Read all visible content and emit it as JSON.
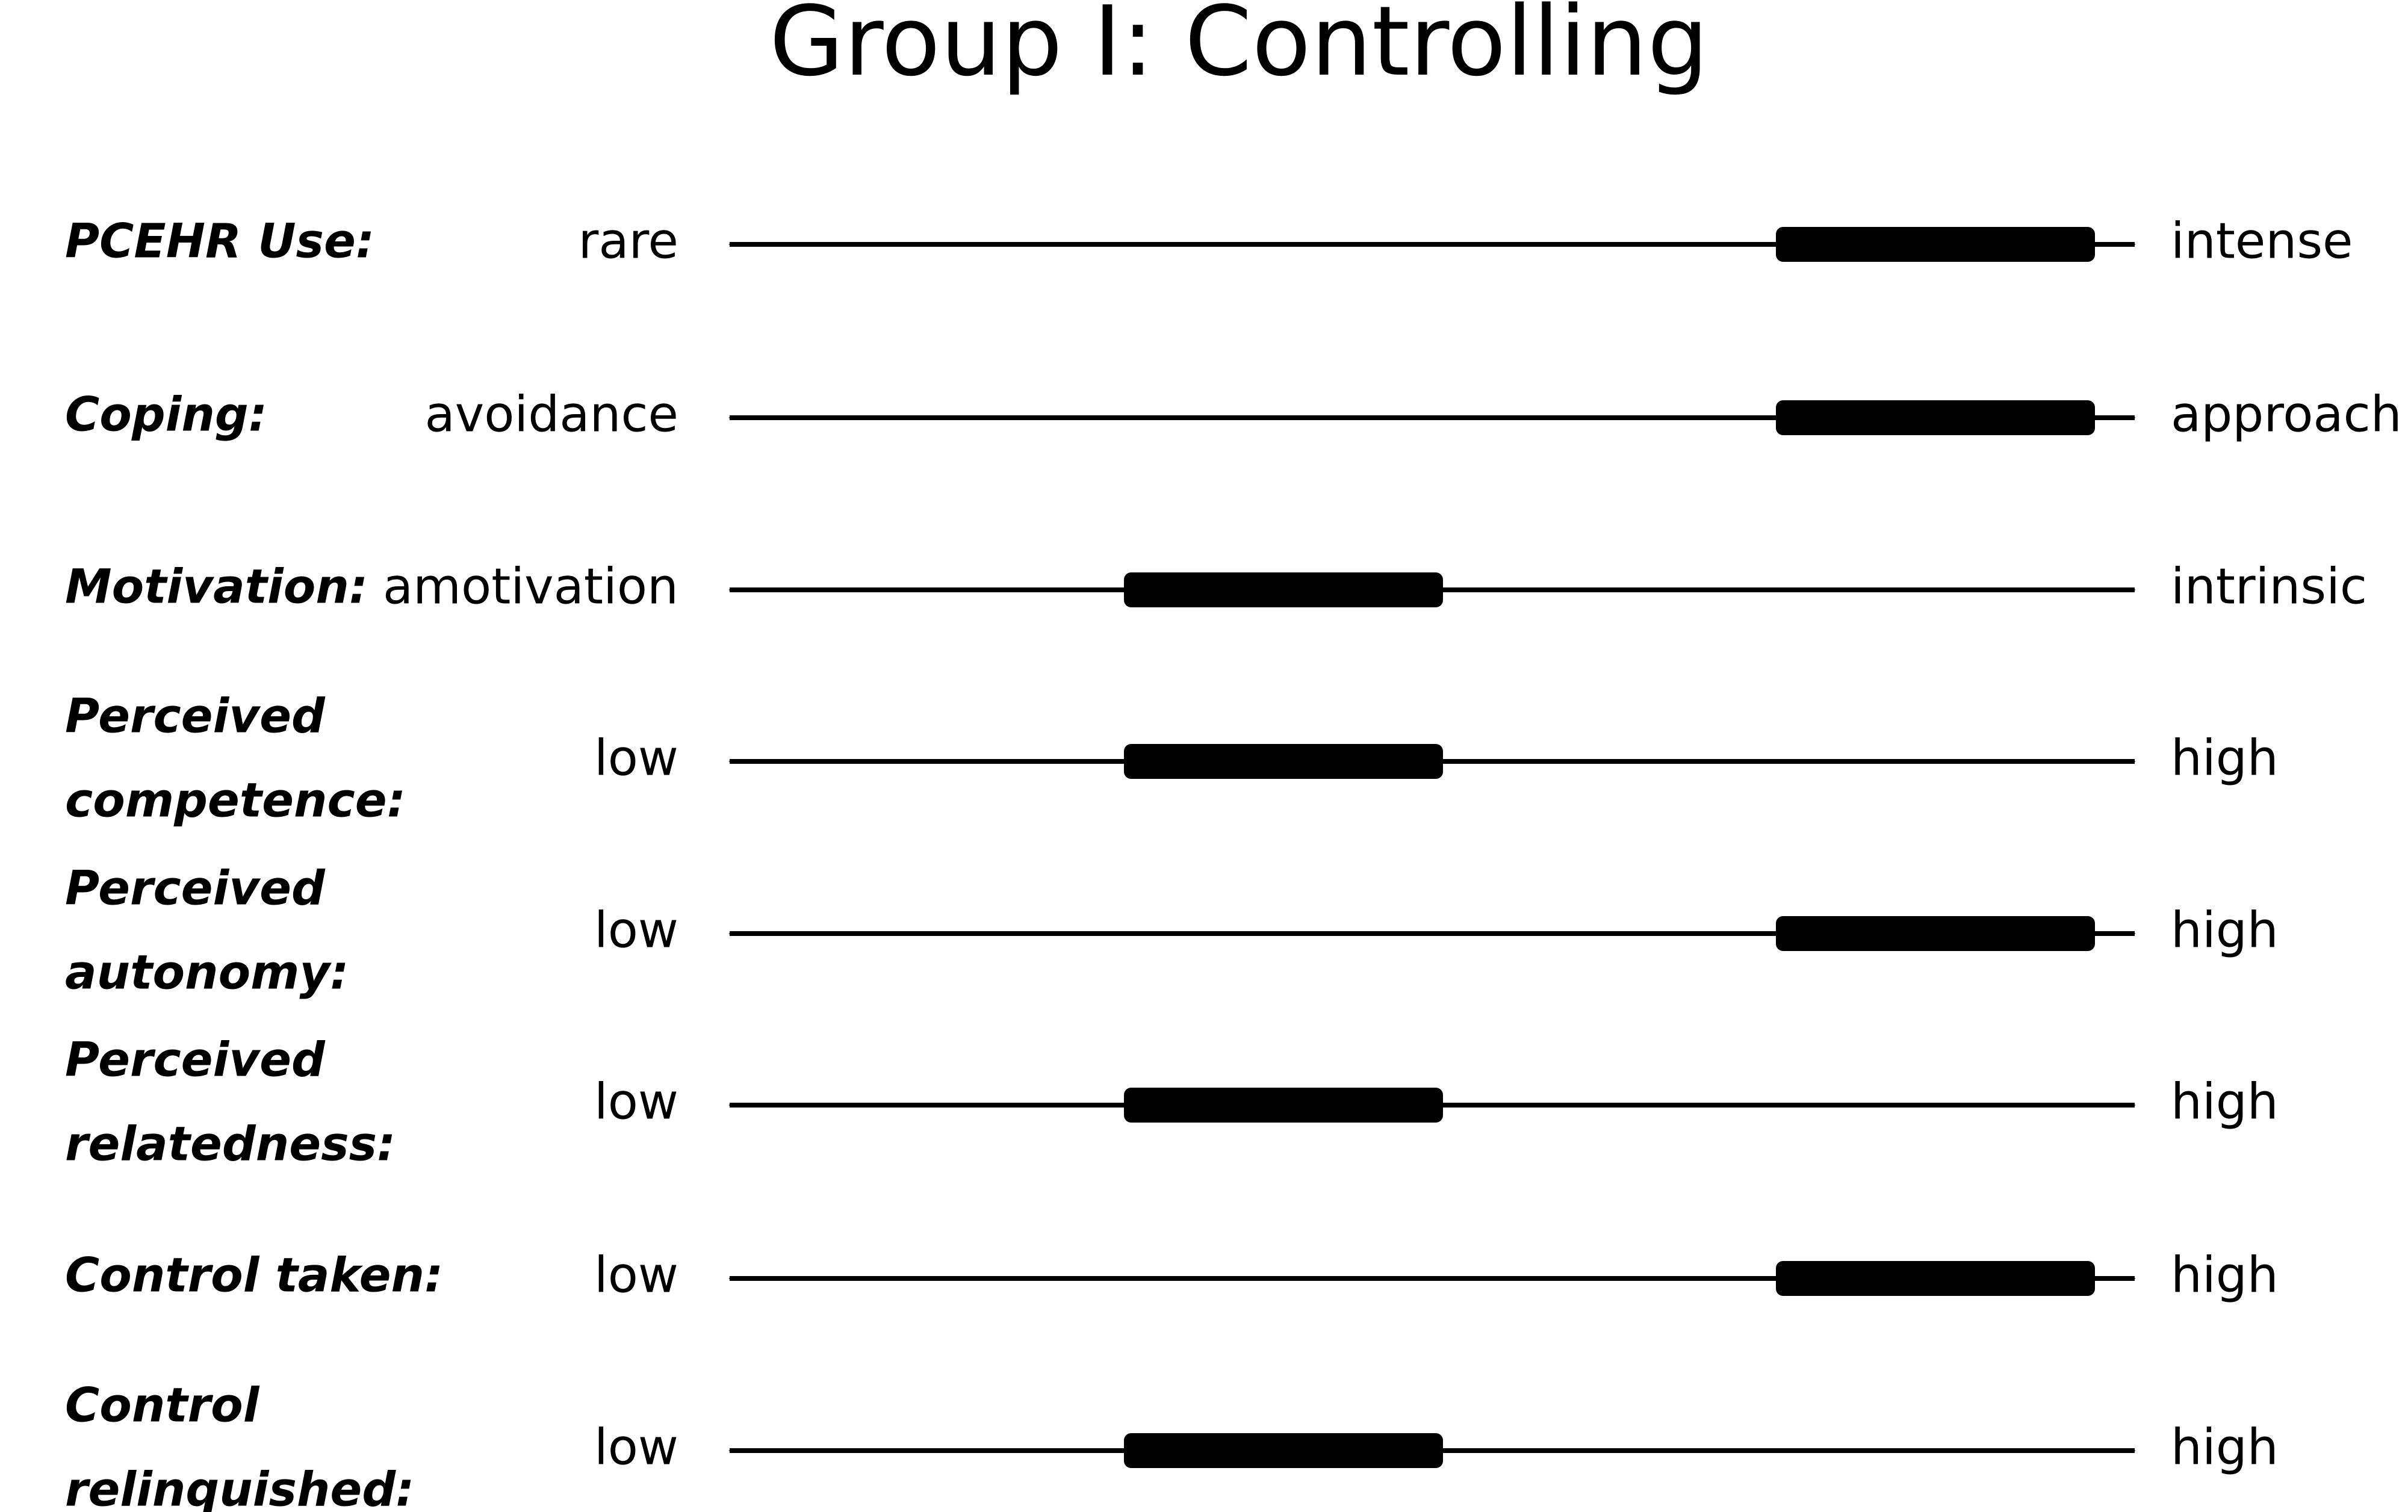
{
  "title": "Group I: Controlling",
  "rows": [
    {
      "label": [
        "PCEHR Use:"
      ],
      "left": "rare",
      "right": "intense"
    },
    {
      "label": [
        "Coping:"
      ],
      "left": "avoidance",
      "right": "approach"
    },
    {
      "label": [
        "Motivation:"
      ],
      "left": "amotivation",
      "right": "intrinsic"
    },
    {
      "label": [
        "Perceived",
        "competence:"
      ],
      "left": "low",
      "right": "high"
    },
    {
      "label": [
        "Perceived",
        "autonomy:"
      ],
      "left": "low",
      "right": "high"
    },
    {
      "label": [
        "Perceived",
        "relatedness:"
      ],
      "left": "low",
      "right": "high"
    },
    {
      "label": [
        "Control taken:"
      ],
      "left": "low",
      "right": "high"
    },
    {
      "label": [
        "Control",
        "relinquished:"
      ],
      "left": "low",
      "right": "high"
    }
  ]
}
